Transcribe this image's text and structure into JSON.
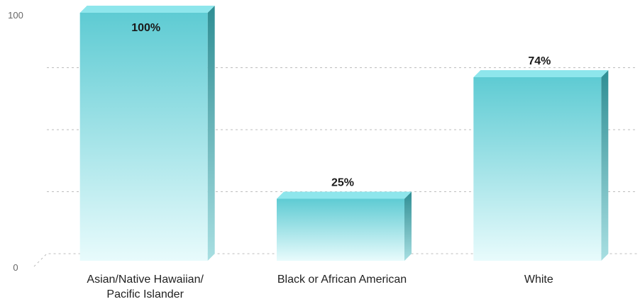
{
  "chart_data": {
    "type": "bar",
    "categories": [
      [
        "Asian/Native Hawaiian/",
        "Pacific Islander"
      ],
      [
        "Black or African American"
      ],
      [
        "White"
      ]
    ],
    "values": [
      100,
      25,
      74
    ],
    "data_labels": [
      "100%",
      "25%",
      "74%"
    ],
    "ylim": [
      0,
      100
    ],
    "y_ticks": [
      {
        "value": 0,
        "label": "0"
      },
      {
        "value": 100,
        "label": "100"
      }
    ],
    "gridlines": [
      25,
      50,
      75
    ],
    "grid": true,
    "style": "3d",
    "colors": {
      "bar_top": "#5ecbd3",
      "bar_bottom": "#e8fbfc",
      "bar_side": "#2f8e94",
      "bar_cap": "#8ee6ec"
    }
  }
}
